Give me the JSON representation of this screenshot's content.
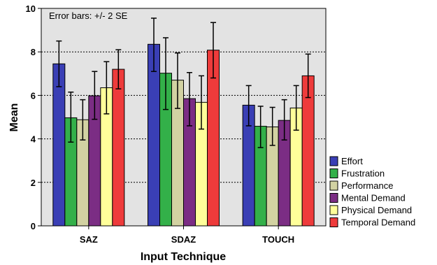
{
  "chart_data": {
    "type": "bar",
    "title": "",
    "annotation": "Error bars: +/- 2 SE",
    "xlabel": "Input Technique",
    "ylabel": "Mean",
    "ylim": [
      0,
      10
    ],
    "yticks": [
      0,
      2,
      4,
      6,
      8,
      10
    ],
    "grid": "horizontal-dotted",
    "legend_placement": "right",
    "categories": [
      "SAZ",
      "SDAZ",
      "TOUCH"
    ],
    "series": [
      {
        "name": "Effort",
        "color": "#3a3fb5",
        "values": [
          7.45,
          8.35,
          5.55
        ],
        "err_low": [
          6.4,
          7.1,
          4.6
        ],
        "err_high": [
          8.5,
          9.55,
          6.45
        ]
      },
      {
        "name": "Frustration",
        "color": "#33b049",
        "values": [
          4.97,
          7.02,
          4.58
        ],
        "err_low": [
          3.85,
          5.35,
          3.6
        ],
        "err_high": [
          6.15,
          8.65,
          5.5
        ]
      },
      {
        "name": "Performance",
        "color": "#d2d2a2",
        "values": [
          4.88,
          6.7,
          4.55
        ],
        "err_low": [
          3.95,
          5.4,
          3.7
        ],
        "err_high": [
          5.8,
          7.95,
          5.45
        ]
      },
      {
        "name": "Mental Demand",
        "color": "#7b2d84",
        "values": [
          5.98,
          5.85,
          4.85
        ],
        "err_low": [
          4.9,
          4.6,
          3.95
        ],
        "err_high": [
          7.1,
          7.05,
          5.8
        ]
      },
      {
        "name": "Physical Demand",
        "color": "#ffff9a",
        "values": [
          6.35,
          5.68,
          5.42
        ],
        "err_low": [
          5.15,
          4.45,
          4.4
        ],
        "err_high": [
          7.55,
          6.9,
          6.45
        ]
      },
      {
        "name": "Temporal Demand",
        "color": "#ee3b3b",
        "values": [
          7.2,
          8.08,
          6.9
        ],
        "err_low": [
          6.3,
          6.8,
          5.9
        ],
        "err_high": [
          8.1,
          9.35,
          7.9
        ]
      }
    ]
  }
}
